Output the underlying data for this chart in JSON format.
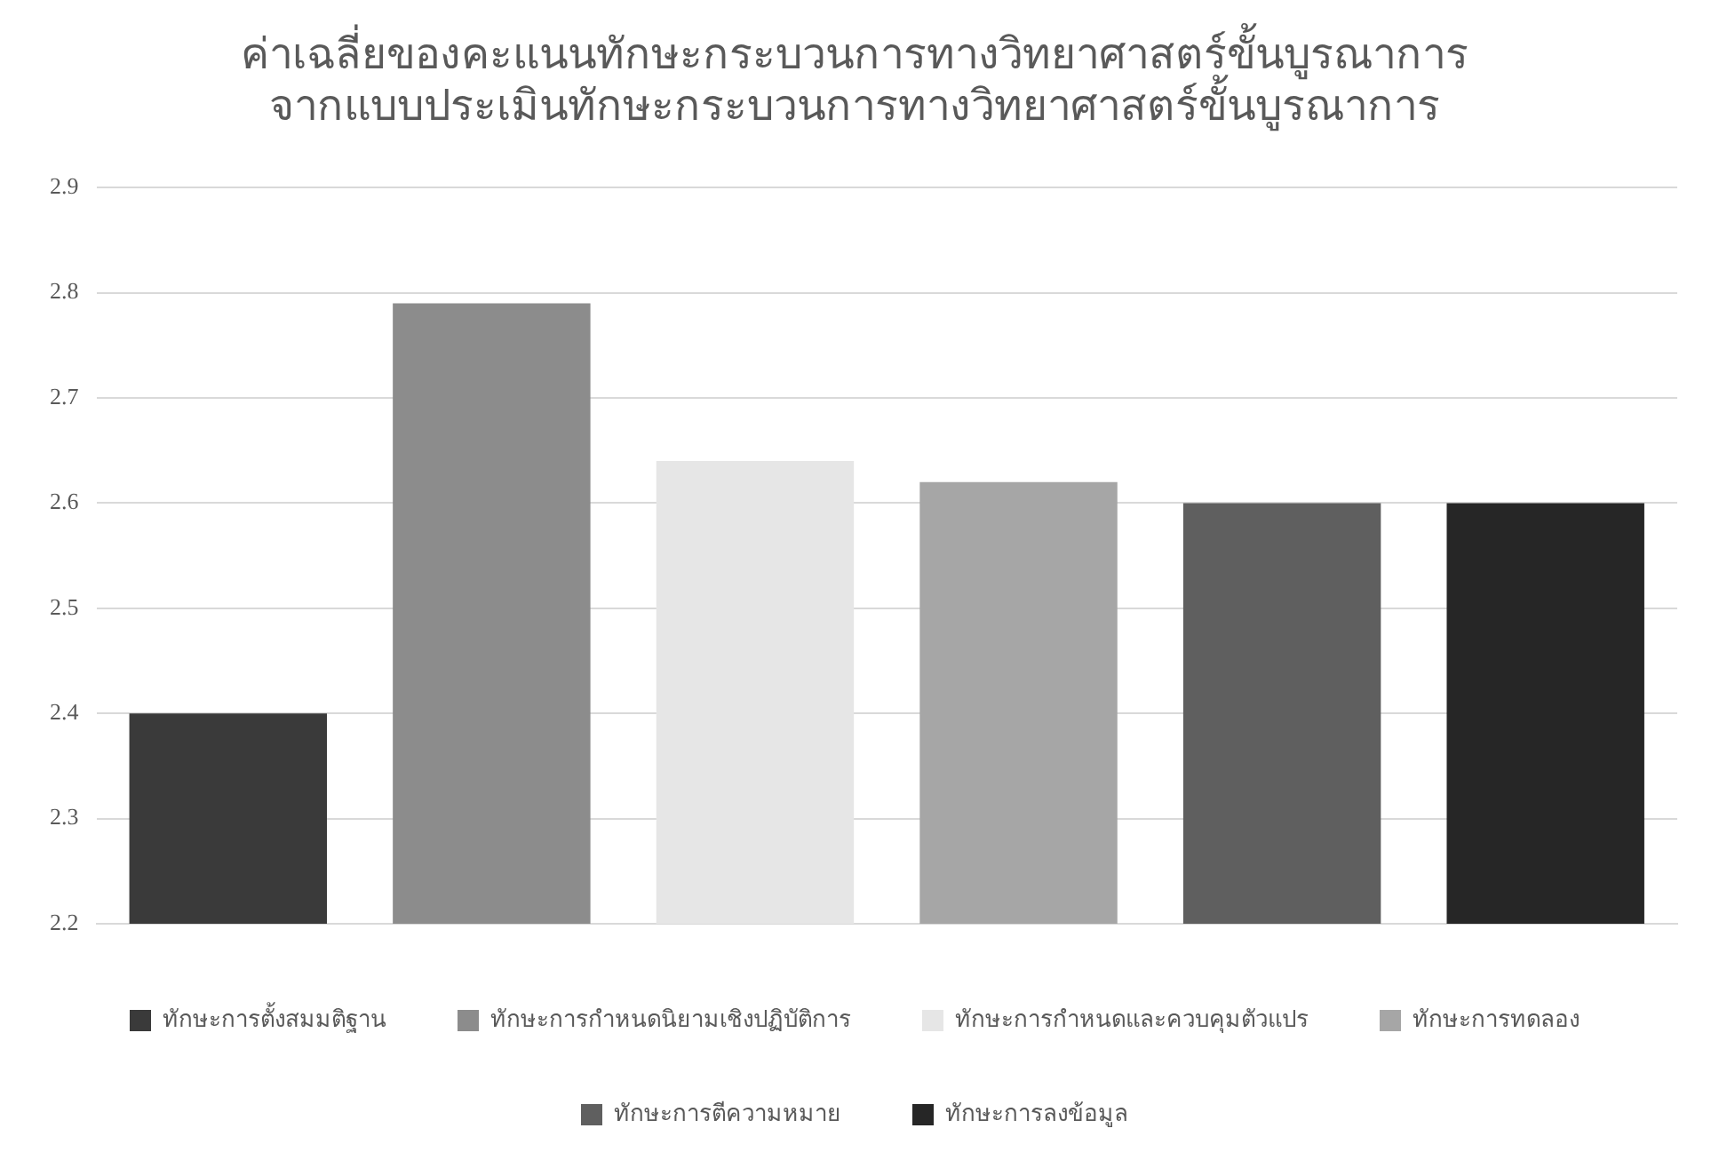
{
  "chart_data": {
    "type": "bar",
    "title": "ค่าเฉลี่ยของคะแนนทักษะกระบวนการทางวิทยาศาสตร์ขั้นบูรณาการ\nจากแบบประเมินทักษะกระบวนการทางวิทยาศาสตร์ขั้นบูรณาการ",
    "categories": [
      null,
      null,
      null,
      null,
      null,
      null
    ],
    "series": [
      {
        "name": "ทักษะการตั้งสมมติฐาน",
        "color": "#3a3a3a",
        "values": [
          2.4,
          null,
          null,
          null,
          null,
          null
        ]
      },
      {
        "name": "ทักษะการกำหนดนิยามเชิงปฏิบัติการ",
        "color": "#8c8c8c",
        "values": [
          null,
          2.79,
          null,
          null,
          null,
          null
        ]
      },
      {
        "name": "ทักษะการกำหนดและควบคุมตัวแปร",
        "color": "#e6e6e6",
        "values": [
          null,
          null,
          2.64,
          null,
          null,
          null
        ]
      },
      {
        "name": "ทักษะการทดลอง",
        "color": "#a6a6a6",
        "values": [
          null,
          null,
          null,
          2.62,
          null,
          null
        ]
      },
      {
        "name": "ทักษะการตีความหมาย",
        "color": "#5f5f5f",
        "values": [
          null,
          null,
          null,
          null,
          2.6,
          null
        ]
      },
      {
        "name": "ทักษะการลงข้อมูล",
        "color": "#262626",
        "values": [
          null,
          null,
          null,
          null,
          null,
          2.6
        ]
      }
    ],
    "ylim": [
      2.2,
      2.9
    ],
    "yticks": [
      2.2,
      2.3,
      2.4,
      2.5,
      2.6,
      2.7,
      2.8,
      2.9
    ],
    "grid": "y",
    "legend": "bottom",
    "tick_labels": "y"
  }
}
